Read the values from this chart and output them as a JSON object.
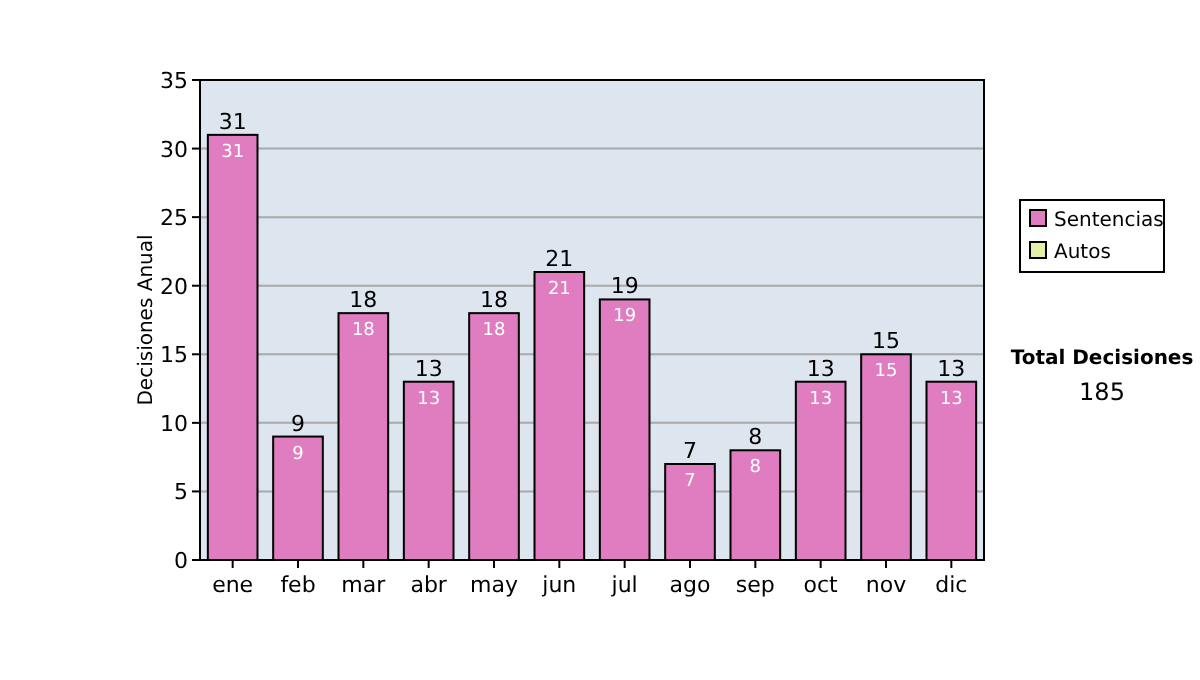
{
  "chart_data": {
    "type": "bar",
    "stacked": true,
    "ylabel": "Decisiones Anual",
    "categories": [
      "ene",
      "feb",
      "mar",
      "abr",
      "may",
      "jun",
      "jul",
      "ago",
      "sep",
      "oct",
      "nov",
      "dic"
    ],
    "series": [
      {
        "name": "Sentencias",
        "color": "#e07cc0",
        "values": [
          31,
          9,
          18,
          13,
          18,
          21,
          19,
          7,
          8,
          13,
          15,
          13
        ],
        "value_labels": [
          "31",
          "9",
          "18",
          "13",
          "18",
          "21",
          "19",
          "7",
          "8",
          "13",
          "15",
          "13"
        ]
      },
      {
        "name": "Autos",
        "color": "#e4f0a8",
        "values": [
          0,
          0,
          0,
          0,
          0,
          0,
          0,
          0,
          0,
          0,
          0,
          0
        ]
      }
    ],
    "totals": [
      "31",
      "9",
      "18",
      "13",
      "18",
      "21",
      "19",
      "7",
      "8",
      "13",
      "15",
      "13"
    ],
    "ylim": [
      0,
      35
    ],
    "yticks": [
      0,
      5,
      10,
      15,
      20,
      25,
      30,
      35
    ],
    "grid": "y",
    "legend": "right",
    "annotations": [
      "Total Decisiones",
      "185"
    ]
  }
}
